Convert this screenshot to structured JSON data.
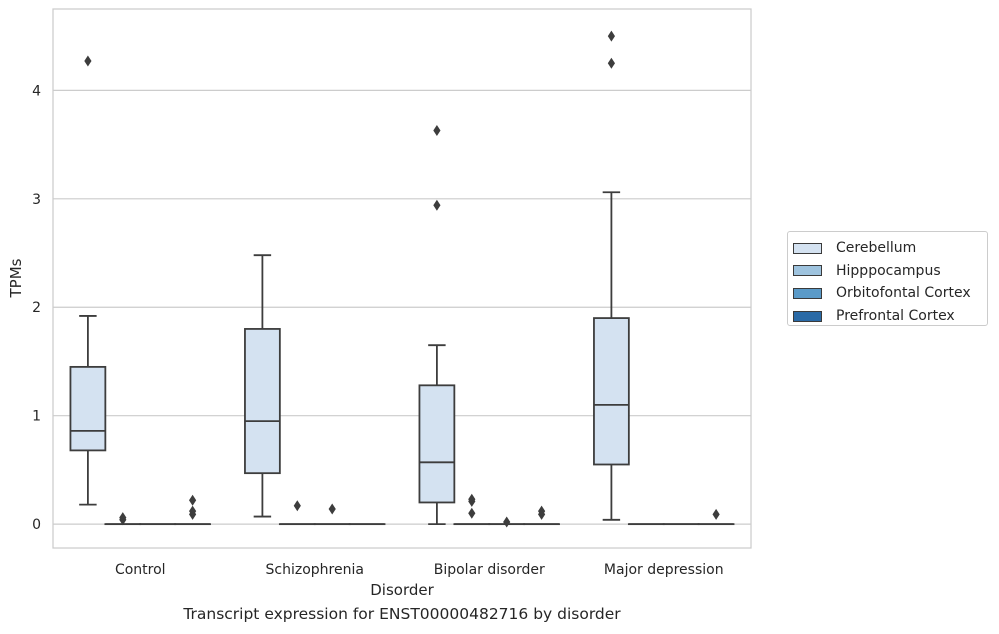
{
  "chart_data": {
    "type": "box",
    "title": "Transcript expression for ENST00000482716 by disorder",
    "xlabel": "Disorder",
    "ylabel": "TPMs",
    "categories": [
      "Control",
      "Schizophrenia",
      "Bipolar disorder",
      "Major depression"
    ],
    "ylim": [
      -0.22,
      4.75
    ],
    "yticks": [
      0,
      1,
      2,
      3,
      4
    ],
    "ytick_labels": [
      "0",
      "1",
      "2",
      "3",
      "4"
    ],
    "grid": "horizontal",
    "legend_position": "right",
    "series": [
      {
        "name": "Cerebellum",
        "color": "#d4e2f1",
        "boxes": [
          {
            "whisker_low": 0.18,
            "q1": 0.68,
            "median": 0.86,
            "q3": 1.45,
            "whisker_high": 1.92,
            "outliers": [
              4.27
            ]
          },
          {
            "whisker_low": 0.07,
            "q1": 0.47,
            "median": 0.95,
            "q3": 1.8,
            "whisker_high": 2.48,
            "outliers": []
          },
          {
            "whisker_low": 0.0,
            "q1": 0.2,
            "median": 0.57,
            "q3": 1.28,
            "whisker_high": 1.65,
            "outliers": [
              2.94,
              3.63
            ]
          },
          {
            "whisker_low": 0.04,
            "q1": 0.55,
            "median": 1.1,
            "q3": 1.9,
            "whisker_high": 3.06,
            "outliers": [
              4.25,
              4.5
            ]
          }
        ]
      },
      {
        "name": "Hipppocampus",
        "color": "#9ec3de",
        "boxes": [
          {
            "whisker_low": 0.0,
            "q1": 0.0,
            "median": 0.0,
            "q3": 0.0,
            "whisker_high": 0.0,
            "outliers": [
              0.04,
              0.06
            ]
          },
          {
            "whisker_low": 0.0,
            "q1": 0.0,
            "median": 0.0,
            "q3": 0.0,
            "whisker_high": 0.0,
            "outliers": [
              0.17
            ]
          },
          {
            "whisker_low": 0.0,
            "q1": 0.0,
            "median": 0.0,
            "q3": 0.0,
            "whisker_high": 0.0,
            "outliers": [
              0.1,
              0.21,
              0.23
            ]
          },
          {
            "whisker_low": 0.0,
            "q1": 0.0,
            "median": 0.0,
            "q3": 0.0,
            "whisker_high": 0.0,
            "outliers": []
          }
        ]
      },
      {
        "name": "Orbitofontal Cortex",
        "color": "#5a9ac8",
        "boxes": [
          {
            "whisker_low": 0.0,
            "q1": 0.0,
            "median": 0.0,
            "q3": 0.0,
            "whisker_high": 0.0,
            "outliers": []
          },
          {
            "whisker_low": 0.0,
            "q1": 0.0,
            "median": 0.0,
            "q3": 0.0,
            "whisker_high": 0.0,
            "outliers": [
              0.14
            ]
          },
          {
            "whisker_low": 0.0,
            "q1": 0.0,
            "median": 0.0,
            "q3": 0.0,
            "whisker_high": 0.0,
            "outliers": [
              0.02
            ]
          },
          {
            "whisker_low": 0.0,
            "q1": 0.0,
            "median": 0.0,
            "q3": 0.0,
            "whisker_high": 0.0,
            "outliers": []
          }
        ]
      },
      {
        "name": "Prefrontal Cortex",
        "color": "#2a6aa6",
        "boxes": [
          {
            "whisker_low": 0.0,
            "q1": 0.0,
            "median": 0.0,
            "q3": 0.0,
            "whisker_high": 0.0,
            "outliers": [
              0.09,
              0.12,
              0.22
            ]
          },
          {
            "whisker_low": 0.0,
            "q1": 0.0,
            "median": 0.0,
            "q3": 0.0,
            "whisker_high": 0.0,
            "outliers": []
          },
          {
            "whisker_low": 0.0,
            "q1": 0.0,
            "median": 0.0,
            "q3": 0.0,
            "whisker_high": 0.0,
            "outliers": [
              0.09,
              0.12
            ]
          },
          {
            "whisker_low": 0.0,
            "q1": 0.0,
            "median": 0.0,
            "q3": 0.0,
            "whisker_high": 0.0,
            "outliers": [
              0.09
            ]
          }
        ]
      }
    ]
  }
}
